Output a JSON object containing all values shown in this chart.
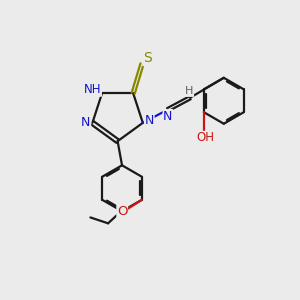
{
  "background_color": "#ebebeb",
  "bond_color": "#1a1a1a",
  "n_color": "#1414cc",
  "o_color": "#cc1414",
  "s_color": "#888800",
  "h_color": "#606060",
  "line_width": 1.6,
  "figsize": [
    3.0,
    3.0
  ],
  "dpi": 100,
  "xlim": [
    0,
    10
  ],
  "ylim": [
    0,
    10
  ]
}
